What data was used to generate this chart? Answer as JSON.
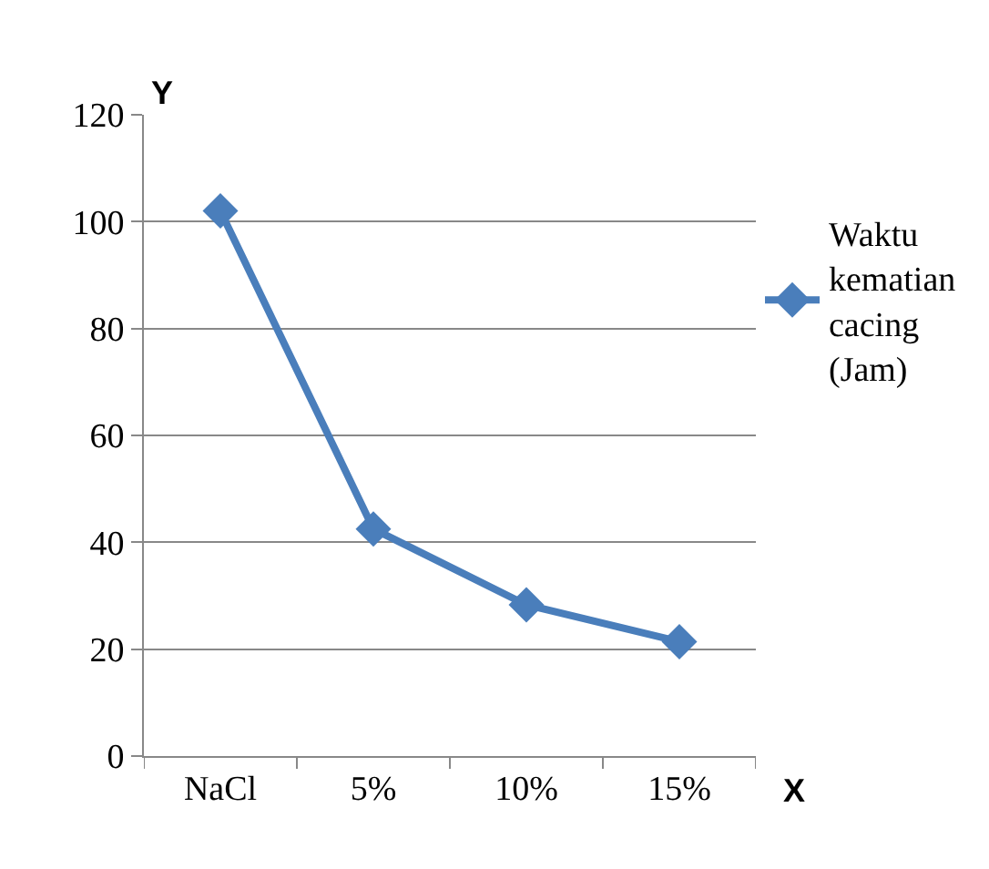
{
  "chart_data": {
    "type": "line",
    "xlabel": "X",
    "ylabel": "Y",
    "categories": [
      "NaCl",
      "5%",
      "10%",
      "15%"
    ],
    "series": [
      {
        "name": "Waktu kematian cacing (Jam)",
        "color": "#4a7ebb",
        "values": [
          102,
          42.5,
          28.3,
          21.4
        ]
      }
    ],
    "ylim": [
      0,
      120
    ],
    "yticks": [
      0,
      20,
      40,
      60,
      80,
      100,
      120
    ],
    "grid": "y",
    "legend": "right",
    "marker": "diamond",
    "line_style": "solid"
  }
}
